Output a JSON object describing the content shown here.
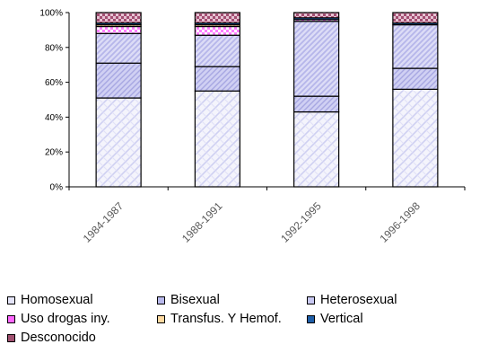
{
  "chart_data": {
    "type": "bar",
    "stacked": true,
    "percent": true,
    "categories": [
      "1984-1987",
      "1988-1991",
      "1992-1995",
      "1996-1998"
    ],
    "category_labels": [
      "1984-1987",
      "1988-1991",
      "1992-1995",
      "1996-1998"
    ],
    "yticks": [
      "0%",
      "20%",
      "40%",
      "60%",
      "80%",
      "100%"
    ],
    "ylim": [
      0,
      100
    ],
    "grid": false,
    "legend_position": "bottom",
    "series": [
      {
        "name": "Homosexual",
        "color": "#e4e4f8",
        "values": [
          51,
          55,
          43,
          56
        ]
      },
      {
        "name": "Bisexual",
        "color": "#b9b9ec",
        "values": [
          20,
          14,
          9,
          12
        ]
      },
      {
        "name": "Heterosexual",
        "color": "#c8c8f2",
        "values": [
          17,
          18,
          43,
          25
        ]
      },
      {
        "name": "Uso drogas iny.",
        "color": "#ff66ff",
        "values": [
          4,
          5,
          1,
          0
        ]
      },
      {
        "name": "Transfus. Y Hemof.",
        "color": "#ffd9a0",
        "values": [
          1,
          1,
          0,
          0
        ]
      },
      {
        "name": "Vertical",
        "color": "#1f5fa8",
        "values": [
          1,
          1,
          1,
          1
        ]
      },
      {
        "name": "Desconocido",
        "color": "#a05070",
        "values": [
          6,
          6,
          3,
          6
        ]
      }
    ]
  }
}
